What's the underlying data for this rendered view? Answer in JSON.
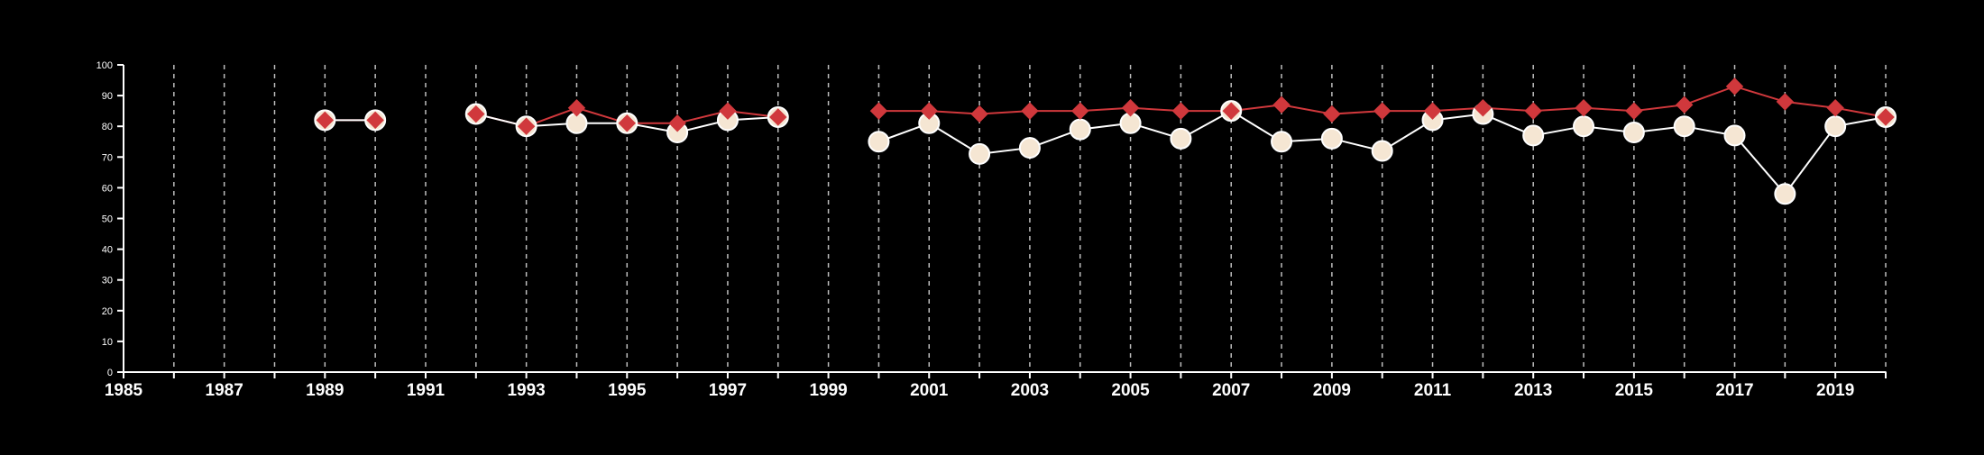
{
  "chart_data": {
    "type": "line",
    "title": "",
    "xlabel": "",
    "ylabel": "",
    "xlim": [
      1985,
      2020
    ],
    "ylim": [
      0,
      100
    ],
    "yticks": [
      0,
      10,
      20,
      30,
      40,
      50,
      60,
      70,
      80,
      90,
      100
    ],
    "xticks": [
      1985,
      1987,
      1989,
      1991,
      1993,
      1995,
      1997,
      1999,
      2001,
      2003,
      2005,
      2007,
      2009,
      2011,
      2013,
      2015,
      2017,
      2019
    ],
    "grid": "vertical dashed lines at each year",
    "legend": "none",
    "series": [
      {
        "marker": "diamond",
        "color": "#d0383c",
        "points": [
          [
            1989,
            82
          ],
          [
            1990,
            82
          ],
          [
            1992,
            84
          ],
          [
            1993,
            80
          ],
          [
            1994,
            86
          ],
          [
            1995,
            81
          ],
          [
            1996,
            81
          ],
          [
            1997,
            85
          ],
          [
            1998,
            83
          ],
          [
            2000,
            85
          ],
          [
            2001,
            85
          ],
          [
            2002,
            84
          ],
          [
            2003,
            85
          ],
          [
            2004,
            85
          ],
          [
            2005,
            86
          ],
          [
            2006,
            85
          ],
          [
            2007,
            85
          ],
          [
            2008,
            87
          ],
          [
            2009,
            84
          ],
          [
            2010,
            85
          ],
          [
            2011,
            85
          ],
          [
            2012,
            86
          ],
          [
            2013,
            85
          ],
          [
            2014,
            86
          ],
          [
            2015,
            85
          ],
          [
            2016,
            87
          ],
          [
            2017,
            93
          ],
          [
            2018,
            88
          ],
          [
            2019,
            86
          ],
          [
            2020,
            83
          ]
        ]
      },
      {
        "marker": "circle",
        "color": "#f5e6d3",
        "points": [
          [
            1989,
            82
          ],
          [
            1990,
            82
          ],
          [
            1992,
            84
          ],
          [
            1993,
            80
          ],
          [
            1994,
            81
          ],
          [
            1995,
            81
          ],
          [
            1996,
            78
          ],
          [
            1997,
            82
          ],
          [
            1998,
            83
          ],
          [
            2000,
            75
          ],
          [
            2001,
            81
          ],
          [
            2002,
            71
          ],
          [
            2003,
            73
          ],
          [
            2004,
            79
          ],
          [
            2005,
            81
          ],
          [
            2006,
            76
          ],
          [
            2007,
            85
          ],
          [
            2008,
            75
          ],
          [
            2009,
            76
          ],
          [
            2010,
            72
          ],
          [
            2011,
            82
          ],
          [
            2012,
            84
          ],
          [
            2013,
            77
          ],
          [
            2014,
            80
          ],
          [
            2015,
            78
          ],
          [
            2016,
            80
          ],
          [
            2017,
            77
          ],
          [
            2018,
            58
          ],
          [
            2019,
            80
          ],
          [
            2020,
            83
          ]
        ]
      }
    ]
  }
}
